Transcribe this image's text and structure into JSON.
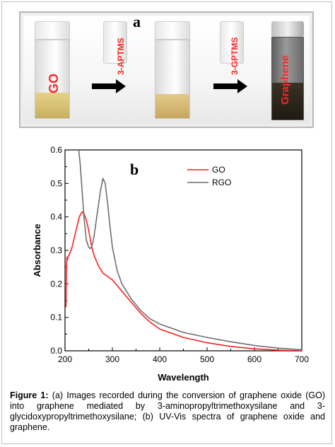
{
  "panel_a": {
    "letter": "a",
    "vial_labels": [
      "GO",
      "Graphene"
    ],
    "reagents": [
      "3-APTMS",
      "3-GPTMS"
    ]
  },
  "panel_b": {
    "letter": "b"
  },
  "colors": {
    "go": "#ff1f1f",
    "rgo": "#6e6e6e",
    "label_red": "#ff2626"
  },
  "chart_data": {
    "type": "line",
    "xlabel": "Wavelength",
    "ylabel": "Absorbance",
    "xlim": [
      200,
      700
    ],
    "ylim": [
      0.0,
      0.6
    ],
    "xticks": [
      200,
      300,
      400,
      500,
      600,
      700
    ],
    "yticks": [
      0.0,
      0.1,
      0.2,
      0.3,
      0.4,
      0.5,
      0.6
    ],
    "ytick_labels": [
      "0.0",
      "0.1",
      "0.2",
      "0.3",
      "0.4",
      "0.5",
      "0.6"
    ],
    "legend_position": "top-right",
    "series": [
      {
        "name": "GO",
        "color": "#ff1f1f",
        "x": [
          202,
          203,
          204,
          205,
          206,
          210,
          215,
          220,
          225,
          230,
          236,
          240,
          245,
          250,
          255,
          260,
          270,
          280,
          290,
          300,
          310,
          320,
          340,
          360,
          380,
          400,
          450,
          500,
          550,
          600,
          650,
          700
        ],
        "y": [
          0.13,
          0.25,
          0.28,
          0.27,
          0.28,
          0.29,
          0.31,
          0.34,
          0.37,
          0.4,
          0.415,
          0.41,
          0.39,
          0.36,
          0.32,
          0.29,
          0.255,
          0.232,
          0.222,
          0.212,
          0.195,
          0.178,
          0.145,
          0.112,
          0.085,
          0.065,
          0.04,
          0.024,
          0.013,
          0.006,
          0.002,
          0.0
        ]
      },
      {
        "name": "RGO",
        "color": "#6e6e6e",
        "x": [
          229,
          232,
          236,
          240,
          245,
          250,
          253,
          256,
          260,
          265,
          270,
          275,
          280,
          285,
          290,
          295,
          300,
          310,
          320,
          340,
          360,
          380,
          400,
          450,
          500,
          550,
          600,
          650,
          700
        ],
        "y": [
          0.6,
          0.56,
          0.48,
          0.4,
          0.33,
          0.31,
          0.305,
          0.31,
          0.33,
          0.38,
          0.43,
          0.48,
          0.515,
          0.5,
          0.44,
          0.37,
          0.31,
          0.24,
          0.2,
          0.155,
          0.12,
          0.095,
          0.08,
          0.055,
          0.04,
          0.027,
          0.016,
          0.008,
          0.003
        ]
      }
    ]
  },
  "caption": {
    "label": "Figure 1:",
    "text": " (a) Images recorded during the conversion of graphene oxide (GO) into graphene mediated by 3-aminopropyltrimethoxysilane and 3-glycidoxypropyltrimethoxysilane; (b) UV-Vis spectra of graphene oxide and graphene."
  }
}
